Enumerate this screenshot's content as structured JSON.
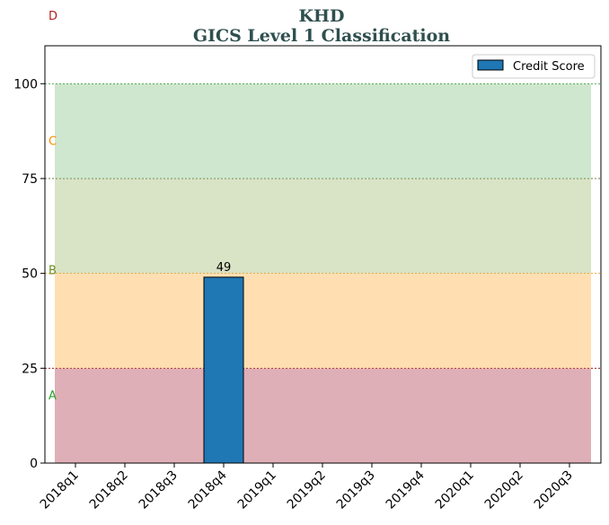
{
  "chart_data": {
    "type": "bar",
    "title": "KHD",
    "subtitle": "GICS Level 1 Classification",
    "categories": [
      "2018q1",
      "2018q2",
      "2018q3",
      "2018q4",
      "2019q1",
      "2019q2",
      "2019q3",
      "2019q4",
      "2020q1",
      "2020q2",
      "2020q3"
    ],
    "series": [
      {
        "name": "Credit Score",
        "values": [
          null,
          null,
          null,
          49,
          null,
          null,
          null,
          null,
          null,
          null,
          null
        ],
        "color": "#1f77b4"
      }
    ],
    "data_labels": [
      "",
      "",
      "",
      "49",
      "",
      "",
      "",
      "",
      "",
      "",
      ""
    ],
    "ylim": [
      0,
      110
    ],
    "yticks": [
      0,
      25,
      50,
      75,
      100
    ],
    "bands": [
      {
        "label": "A",
        "from": 0,
        "to": 25,
        "fill": "#c06070",
        "line": "#8b0000",
        "label_color": "#2ca02c",
        "label_value": 18
      },
      {
        "label": "B",
        "from": 25,
        "to": 50,
        "fill": "#ffbf66",
        "line": "#ff8c00",
        "label_color": "#6b8e23",
        "label_value": 51
      },
      {
        "label": "C",
        "from": 50,
        "to": 75,
        "fill": "#b4c88c",
        "line": "#556b2f",
        "label_color": "#ff8c00",
        "label_value": 85
      },
      {
        "label": "D",
        "from": 75,
        "to": 100,
        "fill": "#9dd09d",
        "line": "#228b22",
        "label_color": "#b22222",
        "label_value": 118
      }
    ],
    "legend_position": "top-right",
    "grid": false
  }
}
